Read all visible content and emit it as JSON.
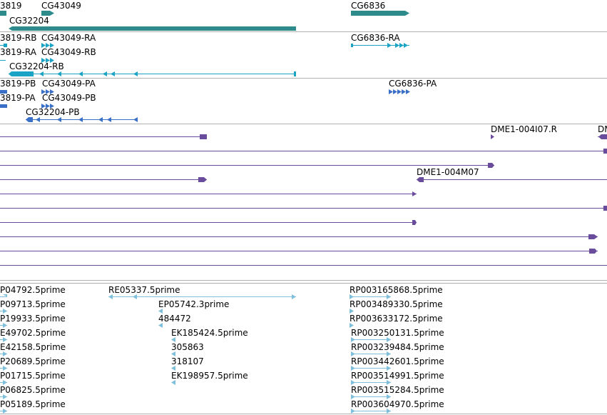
{
  "colors": {
    "gene": "#2e8b8b",
    "transcript": "#1aa3c4",
    "protein": "#3a6fc8",
    "clone": "#6a4c9c",
    "est": "#7fbfdc",
    "divider": "#b0b0b0"
  },
  "genes": {
    "labels": [
      "3819",
      "CG43049",
      "CG32204",
      "CG6836"
    ]
  },
  "transcripts": {
    "labels": [
      "3819-RB",
      "CG43049-RA",
      "CG6836-RA",
      "3819-RA",
      "CG43049-RB",
      "CG32204-RB"
    ]
  },
  "proteins": {
    "labels": [
      "3819-PB",
      "CG43049-PA",
      "CG6836-PA",
      "3819-PA",
      "CG43049-PB",
      "CG32204-PB"
    ]
  },
  "clones": {
    "labels": [
      "DME1-004I07.R",
      "DM",
      "DME1-004M07"
    ]
  },
  "ests": {
    "labels": [
      "P04792.5prime",
      "RE05337.5prime",
      "RP003165868.5prime",
      "P09713.5prime",
      "EP05742.3prime",
      "RP003489330.5prime",
      "P19933.5prime",
      "484472",
      "RP003633172.5prime",
      "E49702.5prime",
      "EK185424.5prime",
      "RP003250131.5prime",
      "E42158.5prime",
      "305863",
      "RP003239484.5prime",
      "P20689.5prime",
      "318107",
      "RP003442601.5prime",
      "P01715.5prime",
      "EK198957.5prime",
      "RP003514991.5prime",
      "P06825.5prime",
      "RP003515284.5prime",
      "P05189.5prime",
      "RP003604970.5prime"
    ]
  }
}
